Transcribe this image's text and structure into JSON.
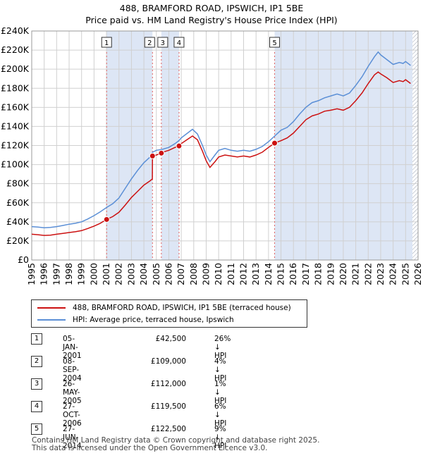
{
  "chart_data": {
    "type": "line",
    "title": "488, BRAMFORD ROAD, IPSWICH, IP1 5BE",
    "subtitle": "Price paid vs. HM Land Registry's House Price Index (HPI)",
    "ylim": [
      0,
      240000
    ],
    "y_ticks": [
      {
        "value": 0,
        "label": "£0"
      },
      {
        "value": 20000,
        "label": "£20K"
      },
      {
        "value": 40000,
        "label": "£40K"
      },
      {
        "value": 60000,
        "label": "£60K"
      },
      {
        "value": 80000,
        "label": "£80K"
      },
      {
        "value": 100000,
        "label": "£100K"
      },
      {
        "value": 120000,
        "label": "£120K"
      },
      {
        "value": 140000,
        "label": "£140K"
      },
      {
        "value": 160000,
        "label": "£160K"
      },
      {
        "value": 180000,
        "label": "£180K"
      },
      {
        "value": 200000,
        "label": "£200K"
      },
      {
        "value": 220000,
        "label": "£220K"
      },
      {
        "value": 240000,
        "label": "£240K"
      }
    ],
    "xlim": [
      1995,
      2026
    ],
    "x_ticks": [
      "1995",
      "1996",
      "1997",
      "1998",
      "1999",
      "2000",
      "2001",
      "2002",
      "2003",
      "2004",
      "2005",
      "2006",
      "2007",
      "2008",
      "2009",
      "2010",
      "2011",
      "2012",
      "2013",
      "2014",
      "2015",
      "2016",
      "2017",
      "2018",
      "2019",
      "2020",
      "2021",
      "2022",
      "2023",
      "2024",
      "2025",
      "2026"
    ],
    "grid": true,
    "series": [
      {
        "name": "HPI",
        "color": "#5b8fd6",
        "points": [
          [
            1995.0,
            35000
          ],
          [
            1995.5,
            34500
          ],
          [
            1996.0,
            33800
          ],
          [
            1996.5,
            34200
          ],
          [
            1997.0,
            35000
          ],
          [
            1997.5,
            36200
          ],
          [
            1998.0,
            37500
          ],
          [
            1998.5,
            38500
          ],
          [
            1999.0,
            40000
          ],
          [
            1999.5,
            43000
          ],
          [
            2000.0,
            46500
          ],
          [
            2000.5,
            50500
          ],
          [
            2001.0,
            55000
          ],
          [
            2001.5,
            59000
          ],
          [
            2002.0,
            65000
          ],
          [
            2002.5,
            75000
          ],
          [
            2003.0,
            85000
          ],
          [
            2003.5,
            94000
          ],
          [
            2004.0,
            102000
          ],
          [
            2004.5,
            108000
          ],
          [
            2004.7,
            113000
          ],
          [
            2005.0,
            115000
          ],
          [
            2005.5,
            116000
          ],
          [
            2006.0,
            118000
          ],
          [
            2006.5,
            122000
          ],
          [
            2006.8,
            125000
          ],
          [
            2007.0,
            128000
          ],
          [
            2007.5,
            133000
          ],
          [
            2007.9,
            137000
          ],
          [
            2008.3,
            132000
          ],
          [
            2008.7,
            120000
          ],
          [
            2009.0,
            110000
          ],
          [
            2009.3,
            103000
          ],
          [
            2009.7,
            110000
          ],
          [
            2010.0,
            115000
          ],
          [
            2010.5,
            117000
          ],
          [
            2011.0,
            115000
          ],
          [
            2011.5,
            114000
          ],
          [
            2012.0,
            115000
          ],
          [
            2012.5,
            114000
          ],
          [
            2013.0,
            116000
          ],
          [
            2013.5,
            119000
          ],
          [
            2014.0,
            124000
          ],
          [
            2014.5,
            130000
          ],
          [
            2015.0,
            136000
          ],
          [
            2015.5,
            139000
          ],
          [
            2016.0,
            145000
          ],
          [
            2016.5,
            153000
          ],
          [
            2017.0,
            160000
          ],
          [
            2017.5,
            165000
          ],
          [
            2018.0,
            167000
          ],
          [
            2018.5,
            170000
          ],
          [
            2019.0,
            172000
          ],
          [
            2019.5,
            174000
          ],
          [
            2020.0,
            172000
          ],
          [
            2020.5,
            175000
          ],
          [
            2021.0,
            183000
          ],
          [
            2021.5,
            192000
          ],
          [
            2022.0,
            203000
          ],
          [
            2022.5,
            213000
          ],
          [
            2022.8,
            218000
          ],
          [
            2023.0,
            215000
          ],
          [
            2023.5,
            210000
          ],
          [
            2024.0,
            205000
          ],
          [
            2024.5,
            207000
          ],
          [
            2024.8,
            206000
          ],
          [
            2025.0,
            208000
          ],
          [
            2025.4,
            204000
          ]
        ]
      },
      {
        "name": "Price paid",
        "color": "#cc1111",
        "points": [
          [
            1995.0,
            27000
          ],
          [
            1995.5,
            26500
          ],
          [
            1996.0,
            25800
          ],
          [
            1996.5,
            26100
          ],
          [
            1997.0,
            27000
          ],
          [
            1997.5,
            27900
          ],
          [
            1998.0,
            28800
          ],
          [
            1998.5,
            29600
          ],
          [
            1999.0,
            30800
          ],
          [
            1999.5,
            33000
          ],
          [
            2000.0,
            35500
          ],
          [
            2000.5,
            38500
          ],
          [
            2001.0,
            42500
          ],
          [
            2001.5,
            45500
          ],
          [
            2002.0,
            50000
          ],
          [
            2002.5,
            57500
          ],
          [
            2003.0,
            65500
          ],
          [
            2003.5,
            72000
          ],
          [
            2004.0,
            78500
          ],
          [
            2004.5,
            83000
          ],
          [
            2004.68,
            85000
          ],
          [
            2004.69,
            109000
          ],
          [
            2005.0,
            110000
          ],
          [
            2005.4,
            112000
          ],
          [
            2005.5,
            113000
          ],
          [
            2006.0,
            115000
          ],
          [
            2006.5,
            118000
          ],
          [
            2006.82,
            119500
          ],
          [
            2007.0,
            122000
          ],
          [
            2007.5,
            126500
          ],
          [
            2007.9,
            130000
          ],
          [
            2008.3,
            126000
          ],
          [
            2008.7,
            114000
          ],
          [
            2009.0,
            104000
          ],
          [
            2009.3,
            97000
          ],
          [
            2009.7,
            103000
          ],
          [
            2010.0,
            108000
          ],
          [
            2010.5,
            110000
          ],
          [
            2011.0,
            109000
          ],
          [
            2011.5,
            108000
          ],
          [
            2012.0,
            109000
          ],
          [
            2012.5,
            108000
          ],
          [
            2013.0,
            110000
          ],
          [
            2013.5,
            113000
          ],
          [
            2014.0,
            118000
          ],
          [
            2014.49,
            122500
          ],
          [
            2015.0,
            125000
          ],
          [
            2015.5,
            128000
          ],
          [
            2016.0,
            133000
          ],
          [
            2016.5,
            140000
          ],
          [
            2017.0,
            147000
          ],
          [
            2017.5,
            151000
          ],
          [
            2018.0,
            153000
          ],
          [
            2018.5,
            156000
          ],
          [
            2019.0,
            157000
          ],
          [
            2019.5,
            158500
          ],
          [
            2020.0,
            157000
          ],
          [
            2020.5,
            160000
          ],
          [
            2021.0,
            167000
          ],
          [
            2021.5,
            175000
          ],
          [
            2022.0,
            185000
          ],
          [
            2022.5,
            194000
          ],
          [
            2022.8,
            197000
          ],
          [
            2023.0,
            195000
          ],
          [
            2023.5,
            191000
          ],
          [
            2024.0,
            186000
          ],
          [
            2024.5,
            188000
          ],
          [
            2024.8,
            187000
          ],
          [
            2025.0,
            189000
          ],
          [
            2025.4,
            185000
          ]
        ]
      }
    ],
    "sale_markers": [
      {
        "label": "1",
        "x": 2001.01,
        "y": 42500
      },
      {
        "label": "2",
        "x": 2004.69,
        "y": 109000
      },
      {
        "label": "3",
        "x": 2005.4,
        "y": 112000
      },
      {
        "label": "4",
        "x": 2006.82,
        "y": 119500
      },
      {
        "label": "5",
        "x": 2014.49,
        "y": 122500
      }
    ],
    "shaded_periods": [
      [
        2001.01,
        2004.69
      ],
      [
        2005.4,
        2006.82
      ],
      [
        2014.49,
        2025.55
      ]
    ],
    "hatched_period": [
      2025.55,
      2026
    ]
  },
  "legend": {
    "price_paid": "488, BRAMFORD ROAD, IPSWICH, IP1 5BE (terraced house)",
    "hpi": "HPI: Average price, terraced house, Ipswich"
  },
  "sales": [
    {
      "num": "1",
      "date": "05-JAN-2001",
      "price": "£42,500",
      "pct": "26% ↓ HPI"
    },
    {
      "num": "2",
      "date": "08-SEP-2004",
      "price": "£109,000",
      "pct": "4% ↓ HPI"
    },
    {
      "num": "3",
      "date": "26-MAY-2005",
      "price": "£112,000",
      "pct": "1% ↓ HPI"
    },
    {
      "num": "4",
      "date": "27-OCT-2006",
      "price": "£119,500",
      "pct": "6% ↓ HPI"
    },
    {
      "num": "5",
      "date": "27-JUN-2014",
      "price": "£122,500",
      "pct": "9% ↓ HPI"
    }
  ],
  "footer": {
    "line1": "Contains HM Land Registry data © Crown copyright and database right 2025.",
    "line2": "This data is licensed under the Open Government Licence v3.0."
  }
}
